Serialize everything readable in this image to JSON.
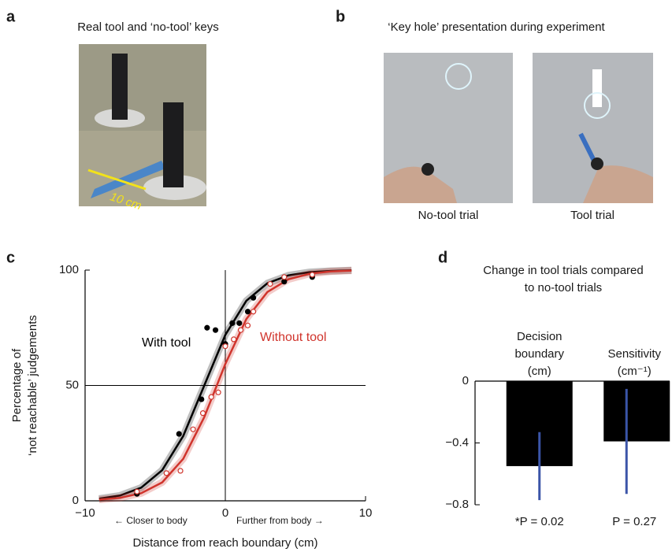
{
  "panel_labels": [
    "a",
    "b",
    "c",
    "d"
  ],
  "photos": {
    "a": {
      "title": "Real tool and ‘no-tool’ keys",
      "annotation": "10 cm"
    },
    "b": {
      "title": "‘Key hole’ presentation during experiment",
      "captions": [
        "No-tool trial",
        "Tool trial"
      ]
    }
  },
  "chart_data": [
    {
      "type": "line",
      "xlabel": "Distance from reach boundary (cm)",
      "ylabel": [
        "Percentage of",
        "‘not reachable’ judgements"
      ],
      "annotations": [
        "← Closer to body",
        "Further from body →"
      ],
      "xlim": [
        -10,
        10
      ],
      "xticks": [
        {
          "value": -10,
          "label": "−10"
        },
        0,
        10
      ],
      "ylim": [
        0,
        100
      ],
      "yticks": [
        0,
        50,
        100
      ],
      "series": [
        {
          "name": "With tool",
          "color": "#000000",
          "style": "line",
          "x": [
            -9,
            -7.5,
            -6,
            -4.5,
            -3,
            -1.5,
            0,
            1.5,
            3,
            4.5,
            6,
            7.5,
            9
          ],
          "values": [
            0.9,
            2.3,
            5.7,
            13.3,
            28.1,
            50,
            71.9,
            86.7,
            94.3,
            97.7,
            99.1,
            99.6,
            99.9
          ]
        },
        {
          "name": "Without tool",
          "color": "#d0342c",
          "style": "line",
          "x": [
            -9,
            -7.5,
            -6,
            -4.5,
            -3,
            -1.5,
            0,
            1.5,
            3,
            4.5,
            6,
            7.5,
            9
          ],
          "values": [
            0.5,
            1.3,
            3.3,
            8.0,
            18.2,
            36.3,
            59.3,
            78.8,
            90.5,
            96.0,
            98.4,
            99.4,
            99.8
          ]
        },
        {
          "color": "#000000",
          "style": "filled",
          "x": [
            -6.3,
            -3.3,
            -1.7,
            -1.3,
            -0.7,
            0,
            0.5,
            1.0,
            1.6,
            2.0,
            4.2,
            6.2
          ],
          "values": [
            3,
            29,
            44,
            75,
            74,
            68,
            77,
            77,
            82,
            88,
            95,
            97
          ]
        },
        {
          "color": "#d0342c",
          "style": "open",
          "x": [
            -6.3,
            -4.2,
            -3.2,
            -2.3,
            -1.6,
            -1.0,
            -0.5,
            0,
            0.6,
            1.1,
            1.6,
            2.0,
            3.2,
            4.2,
            6.2
          ],
          "values": [
            4,
            12,
            13,
            31,
            38,
            45,
            47,
            67,
            70,
            74,
            76,
            82,
            94,
            97,
            98
          ]
        }
      ]
    },
    {
      "type": "bar",
      "title": [
        "Change in tool trials compared",
        "to no-tool trials"
      ],
      "categories": [
        [
          "Decision",
          "boundary",
          "(cm)"
        ],
        [
          "Sensitivity",
          "(cm⁻¹)"
        ]
      ],
      "values": [
        -0.55,
        -0.39
      ],
      "errors": [
        0.22,
        0.34
      ],
      "color": "#000000",
      "error_color": "#3b55a8",
      "annotations": [
        "*P = 0.02",
        "P = 0.27"
      ],
      "ylim": [
        -0.8,
        0
      ],
      "yticks": [
        0,
        {
          "value": -0.4,
          "label": "−0.4"
        },
        {
          "value": -0.8,
          "label": "−0.8"
        }
      ]
    }
  ]
}
